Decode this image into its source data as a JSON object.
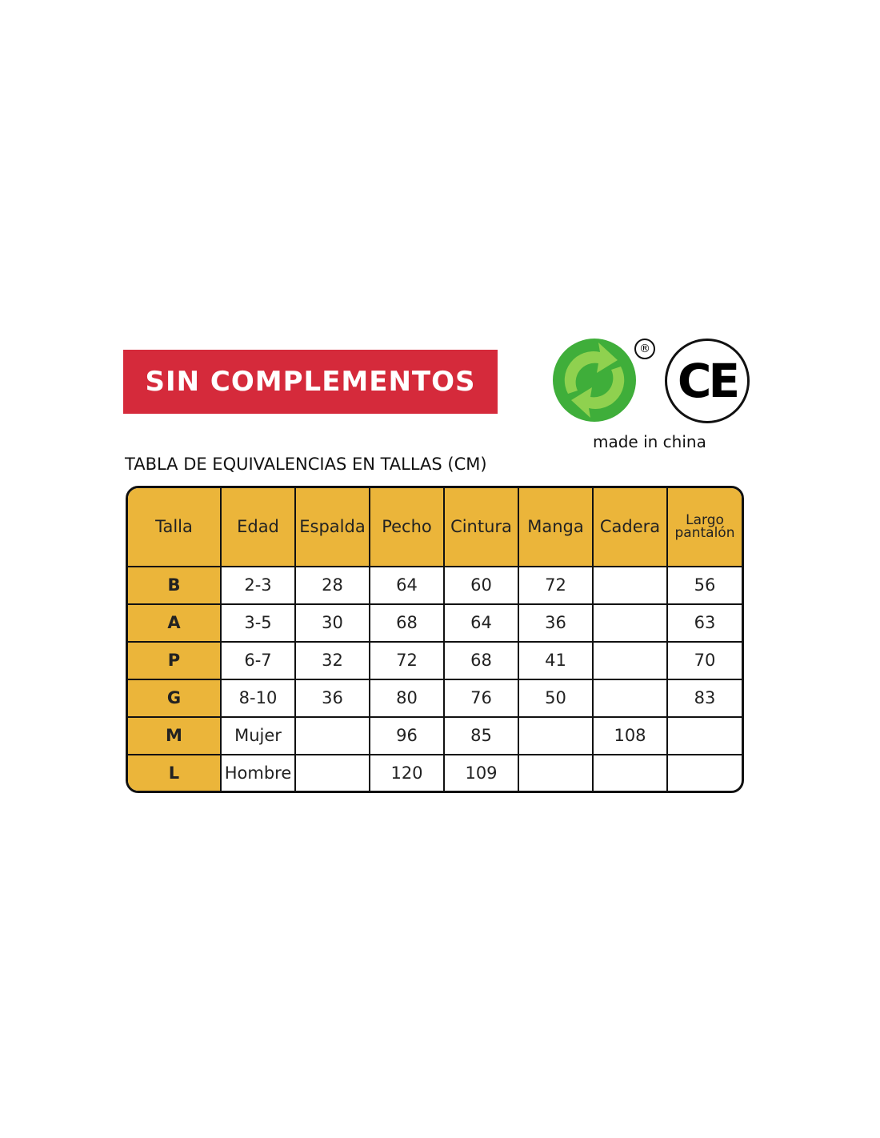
{
  "banner": {
    "label": "SIN COMPLEMENTOS",
    "color": "#d52a3b"
  },
  "logos": {
    "green_dot": "green-dot-recycling-icon",
    "registered": "®",
    "ce": "CE",
    "made_in": "made in china"
  },
  "table": {
    "title": "TABLA DE EQUIVALENCIAS EN TALLAS (CM)",
    "header_color": "#ebb53a",
    "headers": [
      "Talla",
      "Edad",
      "Espalda",
      "Pecho",
      "Cintura",
      "Manga",
      "Cadera",
      "Largo pantalón"
    ],
    "rows": [
      [
        "B",
        "2-3",
        "28",
        "64",
        "60",
        "72",
        "",
        "56"
      ],
      [
        "A",
        "3-5",
        "30",
        "68",
        "64",
        "36",
        "",
        "63"
      ],
      [
        "P",
        "6-7",
        "32",
        "72",
        "68",
        "41",
        "",
        "70"
      ],
      [
        "G",
        "8-10",
        "36",
        "80",
        "76",
        "50",
        "",
        "83"
      ],
      [
        "M",
        "Mujer",
        "",
        "96",
        "85",
        "",
        "108",
        ""
      ],
      [
        "L",
        "Hombre",
        "",
        "120",
        "109",
        "",
        "",
        ""
      ]
    ]
  }
}
